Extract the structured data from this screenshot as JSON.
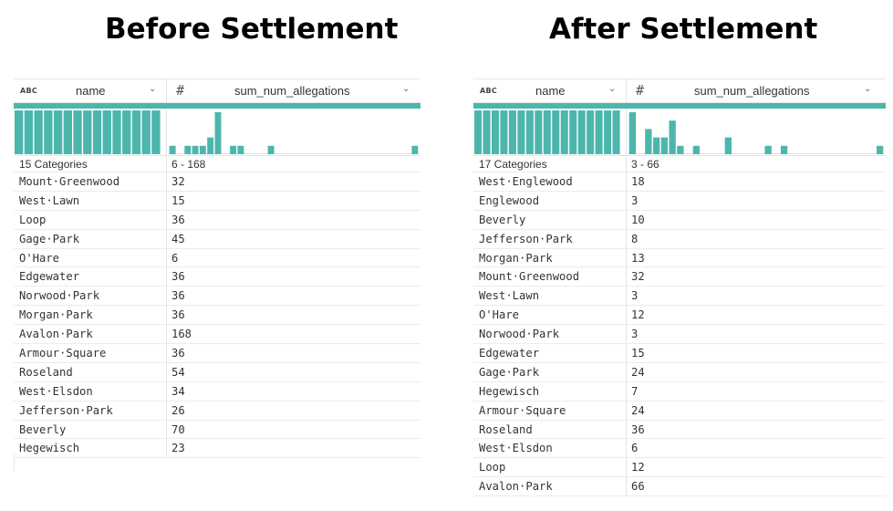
{
  "panels": [
    {
      "title": "Before Settlement",
      "col1_type": "ABC",
      "col1_label": "name",
      "col2_type": "#",
      "col2_label": "sum_num_allegations",
      "col1_summary": "15 Categories",
      "col2_summary": "6 - 168",
      "accent_color": "#4db6ac",
      "histogram_counts": [
        1,
        0,
        1,
        1,
        1,
        2,
        5,
        0,
        1,
        1,
        0,
        0,
        0,
        1,
        0,
        0,
        0,
        0,
        0,
        0,
        0,
        0,
        0,
        0,
        0,
        0,
        0,
        0,
        0,
        0,
        0,
        0,
        1
      ],
      "rows": [
        {
          "name": "Mount·Greenwood",
          "value": "32"
        },
        {
          "name": "West·Lawn",
          "value": "15"
        },
        {
          "name": "Loop",
          "value": "36"
        },
        {
          "name": "Gage·Park",
          "value": "45"
        },
        {
          "name": "O'Hare",
          "value": "6"
        },
        {
          "name": "Edgewater",
          "value": "36"
        },
        {
          "name": "Norwood·Park",
          "value": "36"
        },
        {
          "name": "Morgan·Park",
          "value": "36"
        },
        {
          "name": "Avalon·Park",
          "value": "168"
        },
        {
          "name": "Armour·Square",
          "value": "36"
        },
        {
          "name": "Roseland",
          "value": "54"
        },
        {
          "name": "West·Elsdon",
          "value": "34"
        },
        {
          "name": "Jefferson·Park",
          "value": "26"
        },
        {
          "name": "Beverly",
          "value": "70"
        },
        {
          "name": "Hegewisch",
          "value": "23"
        }
      ]
    },
    {
      "title": "After Settlement",
      "col1_type": "ABC",
      "col1_label": "name",
      "col2_type": "#",
      "col2_label": "sum_num_allegations",
      "col1_summary": "17 Categories",
      "col2_summary": "3 - 66",
      "accent_color": "#4db6ac",
      "histogram_counts": [
        5,
        0,
        3,
        2,
        2,
        4,
        1,
        0,
        1,
        0,
        0,
        0,
        2,
        0,
        0,
        0,
        0,
        1,
        0,
        1,
        0,
        0,
        0,
        0,
        0,
        0,
        0,
        0,
        0,
        0,
        0,
        1
      ],
      "rows": [
        {
          "name": "West·Englewood",
          "value": "18"
        },
        {
          "name": "Englewood",
          "value": "3"
        },
        {
          "name": "Beverly",
          "value": "10"
        },
        {
          "name": "Jefferson·Park",
          "value": "8"
        },
        {
          "name": "Morgan·Park",
          "value": "13"
        },
        {
          "name": "Mount·Greenwood",
          "value": "32"
        },
        {
          "name": "West·Lawn",
          "value": "3"
        },
        {
          "name": "O'Hare",
          "value": "12"
        },
        {
          "name": "Norwood·Park",
          "value": "3"
        },
        {
          "name": "Edgewater",
          "value": "15"
        },
        {
          "name": "Gage·Park",
          "value": "24"
        },
        {
          "name": "Hegewisch",
          "value": "7"
        },
        {
          "name": "Armour·Square",
          "value": "24"
        },
        {
          "name": "Roseland",
          "value": "36"
        },
        {
          "name": "West·Elsdon",
          "value": "6"
        },
        {
          "name": "Loop",
          "value": "12"
        },
        {
          "name": "Avalon·Park",
          "value": "66"
        }
      ]
    }
  ]
}
